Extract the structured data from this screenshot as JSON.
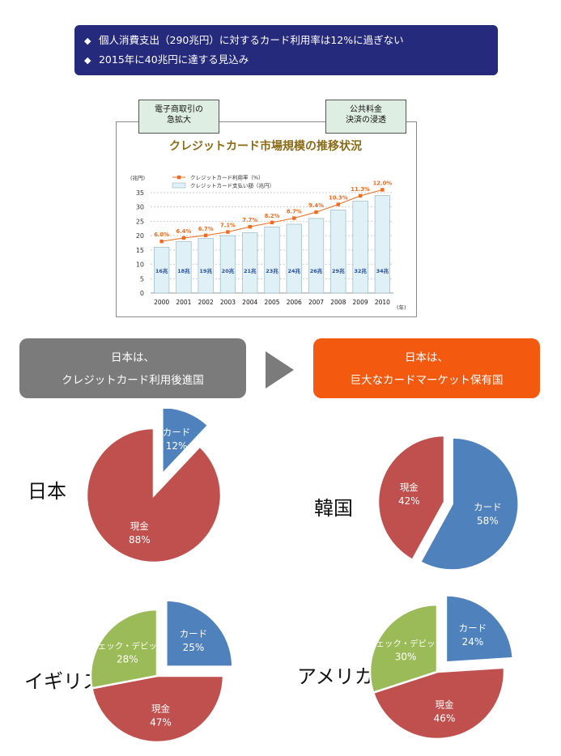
{
  "banner": {
    "line1": "個人消費支出（290兆円）に対するカード利用率は12%に過ぎない",
    "line2": "2015年に40兆円に達する見込み"
  },
  "tags": {
    "left": [
      "電子商取引の",
      "急拡大"
    ],
    "right": [
      "公共料金",
      "決済の浸透"
    ]
  },
  "chart_data": [
    {
      "type": "bar",
      "title": "クレジットカード市場規模の推移状況",
      "ylabel": "(兆円)",
      "xlabel": "(年)",
      "categories": [
        "2000",
        "2001",
        "2002",
        "2003",
        "2004",
        "2005",
        "2006",
        "2007",
        "2008",
        "2009",
        "2010"
      ],
      "ylim": [
        0,
        35
      ],
      "yticks": [
        0,
        5,
        10,
        15,
        20,
        25,
        30,
        35
      ],
      "series": [
        {
          "name": "クレジットカード支払い額（兆円）",
          "kind": "bar",
          "values": [
            16,
            18,
            19,
            20,
            21,
            23,
            24,
            26,
            29,
            32,
            34
          ],
          "labels": [
            "16兆",
            "18兆",
            "19兆",
            "20兆",
            "21兆",
            "23兆",
            "24兆",
            "26兆",
            "29兆",
            "32兆",
            "34兆"
          ]
        },
        {
          "name": "クレジットカード利用率（%）",
          "kind": "line",
          "values": [
            6.0,
            6.4,
            6.7,
            7.1,
            7.7,
            8.2,
            8.7,
            9.4,
            10.3,
            11.3,
            12.0
          ],
          "labels": [
            "6.0%",
            "6.4%",
            "6.7%",
            "7.1%",
            "7.7%",
            "8.2%",
            "8.7%",
            "9.4%",
            "10.3%",
            "11.3%",
            "12.0%"
          ]
        }
      ],
      "colors": {
        "bar_fill": "#dff1f7",
        "bar_stroke": "#9ab7c4",
        "line": "#f26a1b",
        "bar_label": "#2a4fa0"
      }
    },
    {
      "type": "pie",
      "country": "日本",
      "slices": [
        {
          "name": "カード",
          "pct": "12%",
          "value": 12,
          "color": "#4f81bd",
          "exploded": true
        },
        {
          "name": "現金",
          "pct": "88%",
          "value": 88,
          "color": "#c0504d",
          "exploded": false
        }
      ]
    },
    {
      "type": "pie",
      "country": "韓国",
      "slices": [
        {
          "name": "カード",
          "pct": "58%",
          "value": 58,
          "color": "#4f81bd",
          "exploded": true
        },
        {
          "name": "現金",
          "pct": "42%",
          "value": 42,
          "color": "#c0504d",
          "exploded": false
        }
      ]
    },
    {
      "type": "pie",
      "country": "イギリス",
      "slices": [
        {
          "name": "カード",
          "pct": "25%",
          "value": 25,
          "color": "#4f81bd",
          "exploded": true
        },
        {
          "name": "現金",
          "pct": "47%",
          "value": 47,
          "color": "#c0504d",
          "exploded": false
        },
        {
          "name": "チェック・デビット",
          "pct": "28%",
          "value": 28,
          "color": "#9bbb59",
          "exploded": false
        }
      ]
    },
    {
      "type": "pie",
      "country": "アメリカ",
      "slices": [
        {
          "name": "カード",
          "pct": "24%",
          "value": 24,
          "color": "#4f81bd",
          "exploded": true
        },
        {
          "name": "現金",
          "pct": "46%",
          "value": 46,
          "color": "#c0504d",
          "exploded": false
        },
        {
          "name": "チェック・デビット",
          "pct": "30%",
          "value": 30,
          "color": "#9bbb59",
          "exploded": false
        }
      ]
    }
  ],
  "headers": {
    "left": {
      "line1": "日本は、",
      "line2": "クレジットカード利用後進国",
      "color": "#7b7b7b"
    },
    "right": {
      "line1": "日本は、",
      "line2": "巨大なカードマーケット保有国",
      "color": "#f35a10"
    },
    "arrow_icon": "triangle-right-icon"
  }
}
